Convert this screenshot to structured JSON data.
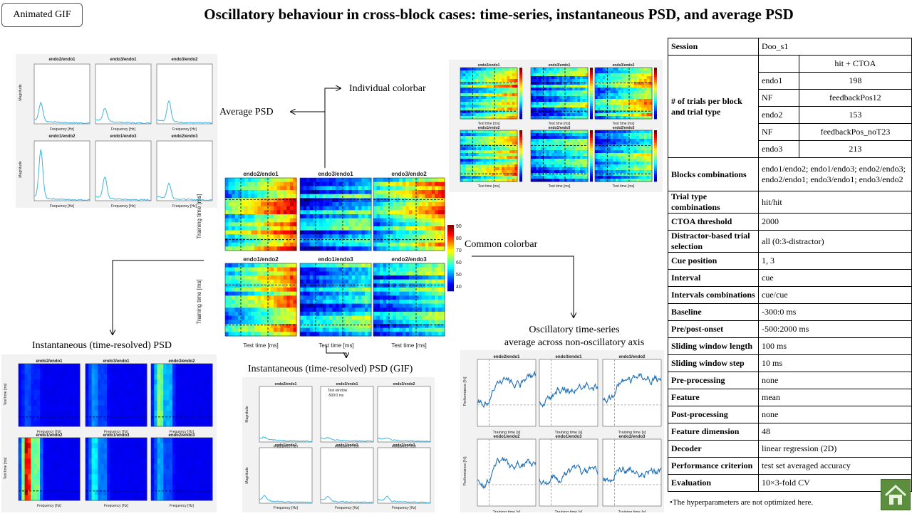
{
  "gif_button": "Animated  GIF",
  "title": "Oscillatory behaviour in cross-block cases: time-series, instantaneous PSD, and average PSD",
  "labels": {
    "avg_psd": "Average  PSD",
    "indiv_colorbar": "Individual  colorbar",
    "common_colorbar": "Common  colorbar",
    "inst_psd": "Instantaneous  (time-resolved)  PSD",
    "inst_psd_gif": "Instantaneous  (time-resolved)  PSD (GIF)",
    "osc_ts_1": "Oscillatory  time-series",
    "osc_ts_2": "average  across  non-oscillatory  axis"
  },
  "block_pairs_top": [
    "endo2/endo1",
    "endo3/endo1",
    "endo3/endo2"
  ],
  "block_pairs_bottom": [
    "endo1/endo2",
    "endo1/endo3",
    "endo2/endo3"
  ],
  "axes": {
    "magnitude": "Magnitude",
    "frequency": "Frequency [Hz]",
    "test_time": "Test time [ms]",
    "training_time": "Training time [ms]",
    "training_time_s": "Training time [s]",
    "performance": "Performance [%]",
    "test_window_1": "Test window",
    "test_window_2": "-500:0 ms"
  },
  "colorbar_ticks": [
    "90",
    "80",
    "70",
    "60",
    "50",
    "40"
  ],
  "hyperparams": {
    "session": {
      "key": "Session",
      "value": "Doo_s1"
    },
    "trials_key": "# of trials per block and trial type",
    "trials_header": "hit + CTOA",
    "trials": [
      {
        "block": "endo1",
        "value": "198"
      },
      {
        "block": "NF",
        "value": "feedbackPos12"
      },
      {
        "block": "endo2",
        "value": "153"
      },
      {
        "block": "NF",
        "value": "feedbackPos_noT23"
      },
      {
        "block": "endo3",
        "value": "213"
      }
    ],
    "rows": [
      {
        "key": "Blocks combinations",
        "value": "endo1/endo2;  endo1/endo3;  endo2/endo3;  endo2/endo1;  endo3/endo1;  endo3/endo2"
      },
      {
        "key": "Trial type combinations",
        "value": "hit/hit"
      },
      {
        "key": "CTOA threshold",
        "value": "2000"
      },
      {
        "key": "Distractor-based trial selection",
        "value": "all  (0:3-distractor)"
      },
      {
        "key": "Cue position",
        "value": "1,  3"
      },
      {
        "key": "Interval",
        "value": "cue"
      },
      {
        "key": "Intervals combinations",
        "value": "cue/cue"
      },
      {
        "key": "Baseline",
        "value": "-300:0  ms"
      },
      {
        "key": "Pre/post-onset",
        "value": "-500:2000  ms"
      },
      {
        "key": "Sliding window length",
        "value": "100  ms"
      },
      {
        "key": "Sliding window step",
        "value": "10  ms"
      },
      {
        "key": "Pre-processing",
        "value": "none"
      },
      {
        "key": "Feature",
        "value": "mean"
      },
      {
        "key": "Post-processing",
        "value": "none"
      },
      {
        "key": "Feature dimension",
        "value": "48"
      },
      {
        "key": "Decoder",
        "value": "linear  regression  (2D)"
      },
      {
        "key": "Performance criterion",
        "value": "test  set  averaged  accuracy"
      },
      {
        "key": "Evaluation",
        "value": "10×3-fold  CV"
      }
    ],
    "note": "•The hyperparameters are not optimized here."
  },
  "colors": {
    "psd_line": "#3fb6e0",
    "ts_line": "#1f6fb5",
    "home": "#5b8f3e"
  }
}
